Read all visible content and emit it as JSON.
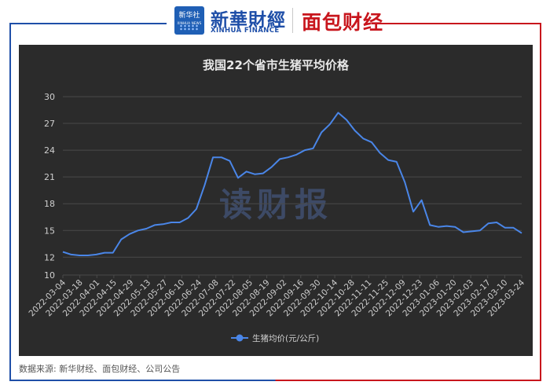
{
  "header": {
    "xinhua_logo_cn": "新华社",
    "xinhua_logo_en": "XINHUA NEWS",
    "brand_xinhua_cn": "新華財經",
    "brand_xinhua_en": "XINHUA FINANCE",
    "brand_mianbao": "面包财经"
  },
  "watermark": "读财报",
  "source": "数据来源: 新华财经、面包财经、公司公告",
  "colors": {
    "line": "#4a86e8",
    "panel_bg": "#2b2b2b",
    "grid": "#4a4a4a",
    "text": "#cfcfcf"
  },
  "chart_data": {
    "type": "line",
    "title": "我国22个省市生猪平均价格",
    "xlabel": "",
    "ylabel": "",
    "ylim": [
      10,
      30
    ],
    "yticks": [
      10,
      12,
      15,
      18,
      21,
      24,
      27,
      30
    ],
    "grid": true,
    "legend_position": "bottom",
    "x_tick_labels": [
      "2022-03-04",
      "2022-03-18",
      "2022-04-01",
      "2022-04-15",
      "2022-04-29",
      "2022-05-13",
      "2022-05-27",
      "2022-06-10",
      "2022-06-24",
      "2022-07-08",
      "2022-07-22",
      "2022-08-05",
      "2022-08-19",
      "2022-09-02",
      "2022-09-16",
      "2022-09-30",
      "2022-10-14",
      "2022-10-28",
      "2022-11-11",
      "2022-11-25",
      "2022-12-09",
      "2022-12-23",
      "2023-01-06",
      "2023-01-20",
      "2023-02-03",
      "2023-02-17",
      "2023-03-10",
      "2023-03-24"
    ],
    "series": [
      {
        "name": "生猪均价(元/公斤)",
        "values": [
          12.6,
          12.3,
          12.2,
          12.2,
          12.3,
          12.5,
          12.5,
          14.0,
          14.6,
          15.0,
          15.2,
          15.6,
          15.7,
          15.9,
          15.9,
          16.4,
          17.4,
          20.1,
          23.2,
          23.2,
          22.8,
          20.9,
          21.6,
          21.3,
          21.4,
          22.1,
          23.0,
          23.2,
          23.5,
          24.0,
          24.2,
          26.0,
          26.9,
          28.2,
          27.4,
          26.2,
          25.3,
          24.9,
          23.7,
          22.9,
          22.7,
          20.4,
          17.1,
          18.4,
          15.6,
          15.4,
          15.5,
          15.4,
          14.8,
          14.9,
          15.0,
          15.8,
          15.9,
          15.3,
          15.3,
          14.7
        ]
      }
    ]
  }
}
